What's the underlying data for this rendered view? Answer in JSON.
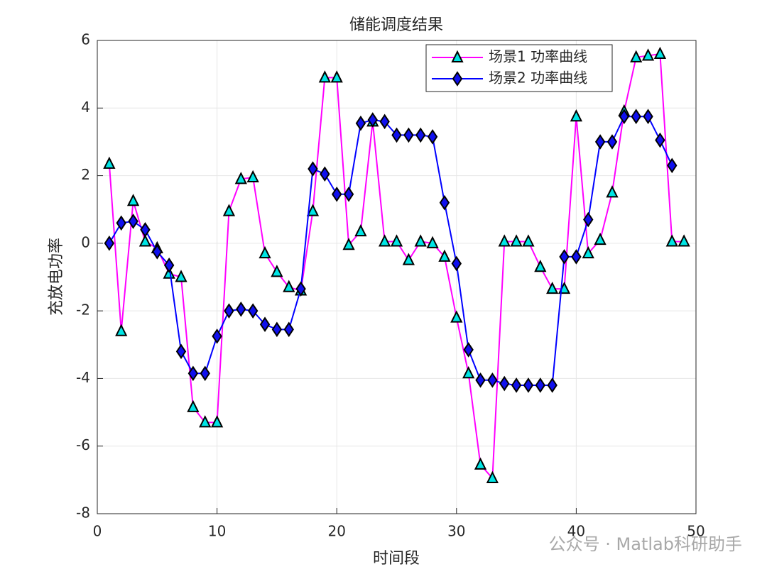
{
  "chart_data": {
    "type": "line",
    "title": "储能调度结果",
    "xlabel": "时间段",
    "ylabel": "充放电功率",
    "xlim": [
      0,
      50
    ],
    "xticks": [
      0,
      10,
      20,
      30,
      40,
      50
    ],
    "ylim": [
      -8,
      6
    ],
    "yticks": [
      -8,
      -6,
      -4,
      -2,
      0,
      2,
      4,
      6
    ],
    "grid": true,
    "legend": "northeast",
    "watermark": "公众号 · Matlab科研助手",
    "series": [
      {
        "name": "场景1 功率曲线",
        "color": "#ff00ff",
        "marker": "triangle",
        "marker_color": "#00e5e5",
        "x": [
          1,
          2,
          3,
          4,
          5,
          6,
          7,
          8,
          9,
          10,
          11,
          12,
          13,
          14,
          15,
          16,
          17,
          18,
          19,
          20,
          21,
          22,
          23,
          24,
          25,
          26,
          27,
          28,
          29,
          30,
          31,
          32,
          33,
          34,
          35,
          36,
          37,
          38,
          39,
          40,
          41,
          42,
          43,
          44,
          45,
          46,
          47,
          48,
          49
        ],
        "values": [
          2.35,
          -2.6,
          1.25,
          0.05,
          -0.15,
          -0.9,
          -1.0,
          -4.85,
          -5.3,
          -5.3,
          0.95,
          1.9,
          1.95,
          -0.3,
          -0.85,
          -1.3,
          -1.4,
          0.95,
          4.9,
          4.9,
          -0.05,
          0.35,
          3.6,
          0.05,
          0.05,
          -0.5,
          0.05,
          0.0,
          -0.4,
          -2.2,
          -3.85,
          -6.55,
          -6.95,
          0.05,
          0.05,
          0.05,
          -0.7,
          -1.35,
          -1.35,
          3.75,
          -0.3,
          0.1,
          1.5,
          3.9,
          5.5,
          5.55,
          5.6,
          0.05,
          0.05
        ]
      },
      {
        "name": "场景2 功率曲线",
        "color": "#0000ff",
        "marker": "diamond",
        "marker_color": "#1010ee",
        "x": [
          1,
          2,
          3,
          4,
          5,
          6,
          7,
          8,
          9,
          10,
          11,
          12,
          13,
          14,
          15,
          16,
          17,
          18,
          19,
          20,
          21,
          22,
          23,
          24,
          25,
          26,
          27,
          28,
          29,
          30,
          31,
          32,
          33,
          34,
          35,
          36,
          37,
          38,
          39,
          40,
          41,
          42,
          43,
          44,
          45,
          46,
          47,
          48
        ],
        "values": [
          0.0,
          0.6,
          0.65,
          0.4,
          -0.25,
          -0.65,
          -3.2,
          -3.85,
          -3.85,
          -2.75,
          -2.0,
          -1.95,
          -2.0,
          -2.4,
          -2.55,
          -2.55,
          -1.35,
          2.2,
          2.05,
          1.45,
          1.45,
          3.55,
          3.65,
          3.6,
          3.2,
          3.2,
          3.2,
          3.15,
          1.2,
          -0.6,
          -3.15,
          -4.05,
          -4.05,
          -4.15,
          -4.2,
          -4.2,
          -4.2,
          -4.2,
          -0.4,
          -0.4,
          0.7,
          3.0,
          3.0,
          3.75,
          3.75,
          3.75,
          3.05,
          2.3
        ]
      }
    ]
  }
}
